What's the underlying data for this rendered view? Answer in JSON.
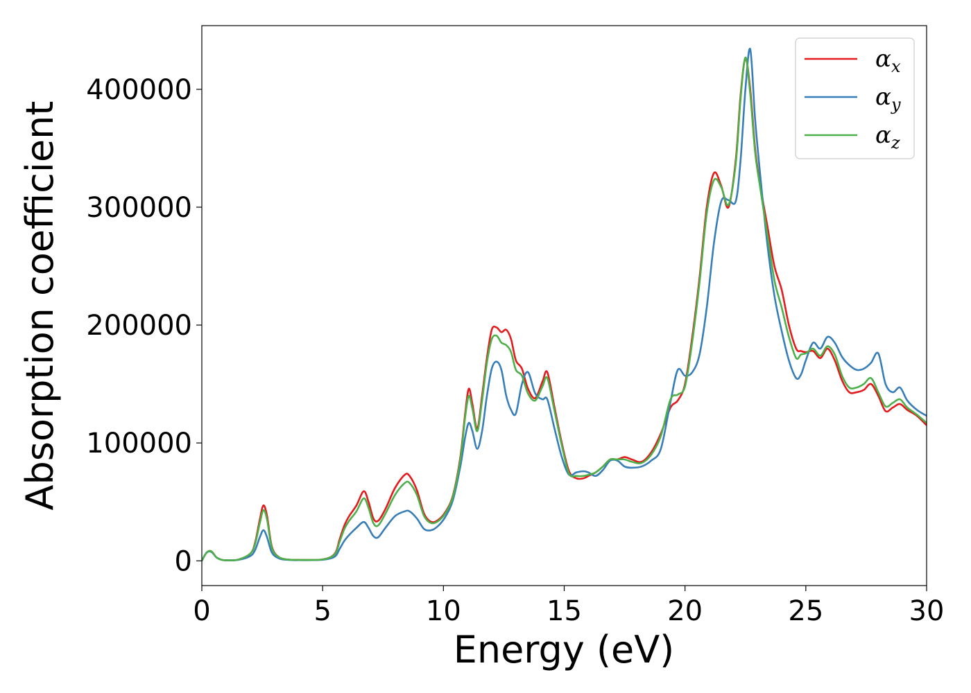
{
  "chart_data": {
    "type": "line",
    "xlabel": "Energy (eV)",
    "ylabel": "Absorption coefficient",
    "xlim": [
      0,
      30
    ],
    "ylim": [
      -21000,
      454000
    ],
    "xticks": [
      0,
      5,
      10,
      15,
      20,
      25,
      30
    ],
    "xtick_labels": [
      "0",
      "5",
      "10",
      "15",
      "20",
      "25",
      "30"
    ],
    "yticks": [
      0,
      100000,
      200000,
      300000,
      400000
    ],
    "ytick_labels": [
      "0",
      "100000",
      "200000",
      "300000",
      "400000"
    ],
    "grid": false,
    "legend_position": "top-right",
    "x": [
      0,
      0.2,
      0.4,
      0.6,
      0.8,
      1.0,
      1.5,
      2.0,
      2.2,
      2.4,
      2.55,
      2.7,
      2.9,
      3.2,
      3.6,
      4.0,
      5.0,
      5.5,
      5.7,
      5.9,
      6.1,
      6.4,
      6.7,
      6.9,
      7.1,
      7.3,
      7.6,
      8.0,
      8.4,
      8.6,
      8.9,
      9.2,
      9.5,
      9.8,
      10.1,
      10.4,
      10.7,
      10.9,
      11.05,
      11.2,
      11.4,
      11.6,
      11.8,
      12.0,
      12.2,
      12.4,
      12.6,
      12.8,
      13.0,
      13.25,
      13.5,
      13.8,
      14.1,
      14.3,
      14.6,
      14.9,
      15.2,
      15.5,
      15.8,
      16.0,
      16.3,
      16.6,
      16.9,
      17.2,
      17.5,
      17.8,
      18.2,
      18.6,
      19.0,
      19.4,
      19.7,
      20.0,
      20.3,
      20.6,
      20.9,
      21.2,
      21.5,
      21.8,
      22.1,
      22.3,
      22.5,
      22.7,
      22.9,
      23.1,
      23.4,
      23.7,
      24.0,
      24.3,
      24.6,
      24.8,
      25.0,
      25.3,
      25.6,
      25.9,
      26.2,
      26.5,
      26.8,
      27.1,
      27.4,
      27.7,
      28.0,
      28.3,
      28.6,
      28.9,
      29.2,
      29.6,
      30.0
    ],
    "series": [
      {
        "name": "x",
        "color": "#e41a1c",
        "values": [
          0,
          7000,
          8000,
          3000,
          1000,
          500,
          1000,
          6000,
          15000,
          35000,
          47000,
          38000,
          12000,
          3000,
          1000,
          800,
          1200,
          6000,
          18000,
          30000,
          38000,
          47000,
          59000,
          50000,
          36000,
          34000,
          44000,
          62000,
          73000,
          72000,
          60000,
          40000,
          33000,
          35000,
          42000,
          56000,
          88000,
          125000,
          146000,
          133000,
          112000,
          140000,
          172000,
          196000,
          198000,
          194000,
          196000,
          188000,
          170000,
          163000,
          146000,
          138000,
          152000,
          160000,
          130000,
          100000,
          76000,
          70000,
          70000,
          72000,
          75000,
          80000,
          86000,
          86000,
          88000,
          86000,
          84000,
          92000,
          108000,
          130000,
          136000,
          150000,
          190000,
          240000,
          300000,
          329000,
          318000,
          300000,
          340000,
          395000,
          426000,
          400000,
          350000,
          320000,
          285000,
          250000,
          230000,
          200000,
          180000,
          178000,
          177000,
          178000,
          172000,
          180000,
          170000,
          153000,
          143000,
          143000,
          145000,
          150000,
          140000,
          127000,
          130000,
          133000,
          128000,
          123000,
          115000
        ]
      },
      {
        "name": "y",
        "color": "#377eb8",
        "values": [
          0,
          7000,
          7500,
          3000,
          1000,
          500,
          800,
          4000,
          9000,
          20000,
          26000,
          20000,
          7000,
          2000,
          800,
          600,
          900,
          3500,
          10000,
          17000,
          22000,
          28000,
          33000,
          28000,
          21000,
          20000,
          28000,
          38000,
          42000,
          42000,
          36000,
          27000,
          26000,
          30000,
          38000,
          52000,
          80000,
          105000,
          117000,
          110000,
          95000,
          110000,
          140000,
          163000,
          169000,
          162000,
          140000,
          128000,
          125000,
          150000,
          160000,
          142000,
          137000,
          137000,
          112000,
          88000,
          73000,
          75000,
          76000,
          75000,
          72000,
          77000,
          85000,
          85000,
          80000,
          79000,
          80000,
          85000,
          95000,
          135000,
          162000,
          157000,
          160000,
          175000,
          215000,
          270000,
          305000,
          306000,
          305000,
          340000,
          400000,
          434000,
          375000,
          330000,
          270000,
          225000,
          195000,
          170000,
          155000,
          158000,
          170000,
          185000,
          180000,
          190000,
          185000,
          173000,
          166000,
          162000,
          163000,
          168000,
          176000,
          150000,
          143000,
          147000,
          136000,
          128000,
          123000
        ]
      },
      {
        "name": "z",
        "color": "#4daf4a",
        "values": [
          0,
          7000,
          8000,
          3000,
          1000,
          500,
          1000,
          6000,
          14000,
          32000,
          43000,
          35000,
          11000,
          3000,
          1000,
          800,
          1200,
          5500,
          16000,
          27000,
          34000,
          42000,
          53000,
          45000,
          32000,
          30000,
          40000,
          56000,
          66000,
          66000,
          56000,
          38000,
          32000,
          34000,
          41000,
          55000,
          86000,
          122000,
          140000,
          129000,
          110000,
          136000,
          168000,
          188000,
          191000,
          185000,
          183000,
          177000,
          162000,
          157000,
          142000,
          136000,
          148000,
          155000,
          127000,
          98000,
          74000,
          72000,
          72000,
          73000,
          75000,
          80000,
          86000,
          86000,
          86000,
          84000,
          83000,
          90000,
          106000,
          137000,
          141000,
          148000,
          186000,
          236000,
          295000,
          323000,
          317000,
          302000,
          337000,
          392000,
          427000,
          396000,
          347000,
          318000,
          278000,
          238000,
          215000,
          190000,
          172000,
          175000,
          176000,
          180000,
          174000,
          182000,
          175000,
          157000,
          147000,
          147000,
          150000,
          155000,
          143000,
          131000,
          134000,
          137000,
          130000,
          124000,
          117000
        ]
      }
    ],
    "legend": [
      {
        "symbol": "α",
        "subscript": "x",
        "color": "#e41a1c"
      },
      {
        "symbol": "α",
        "subscript": "y",
        "color": "#377eb8"
      },
      {
        "symbol": "α",
        "subscript": "z",
        "color": "#4daf4a"
      }
    ]
  }
}
